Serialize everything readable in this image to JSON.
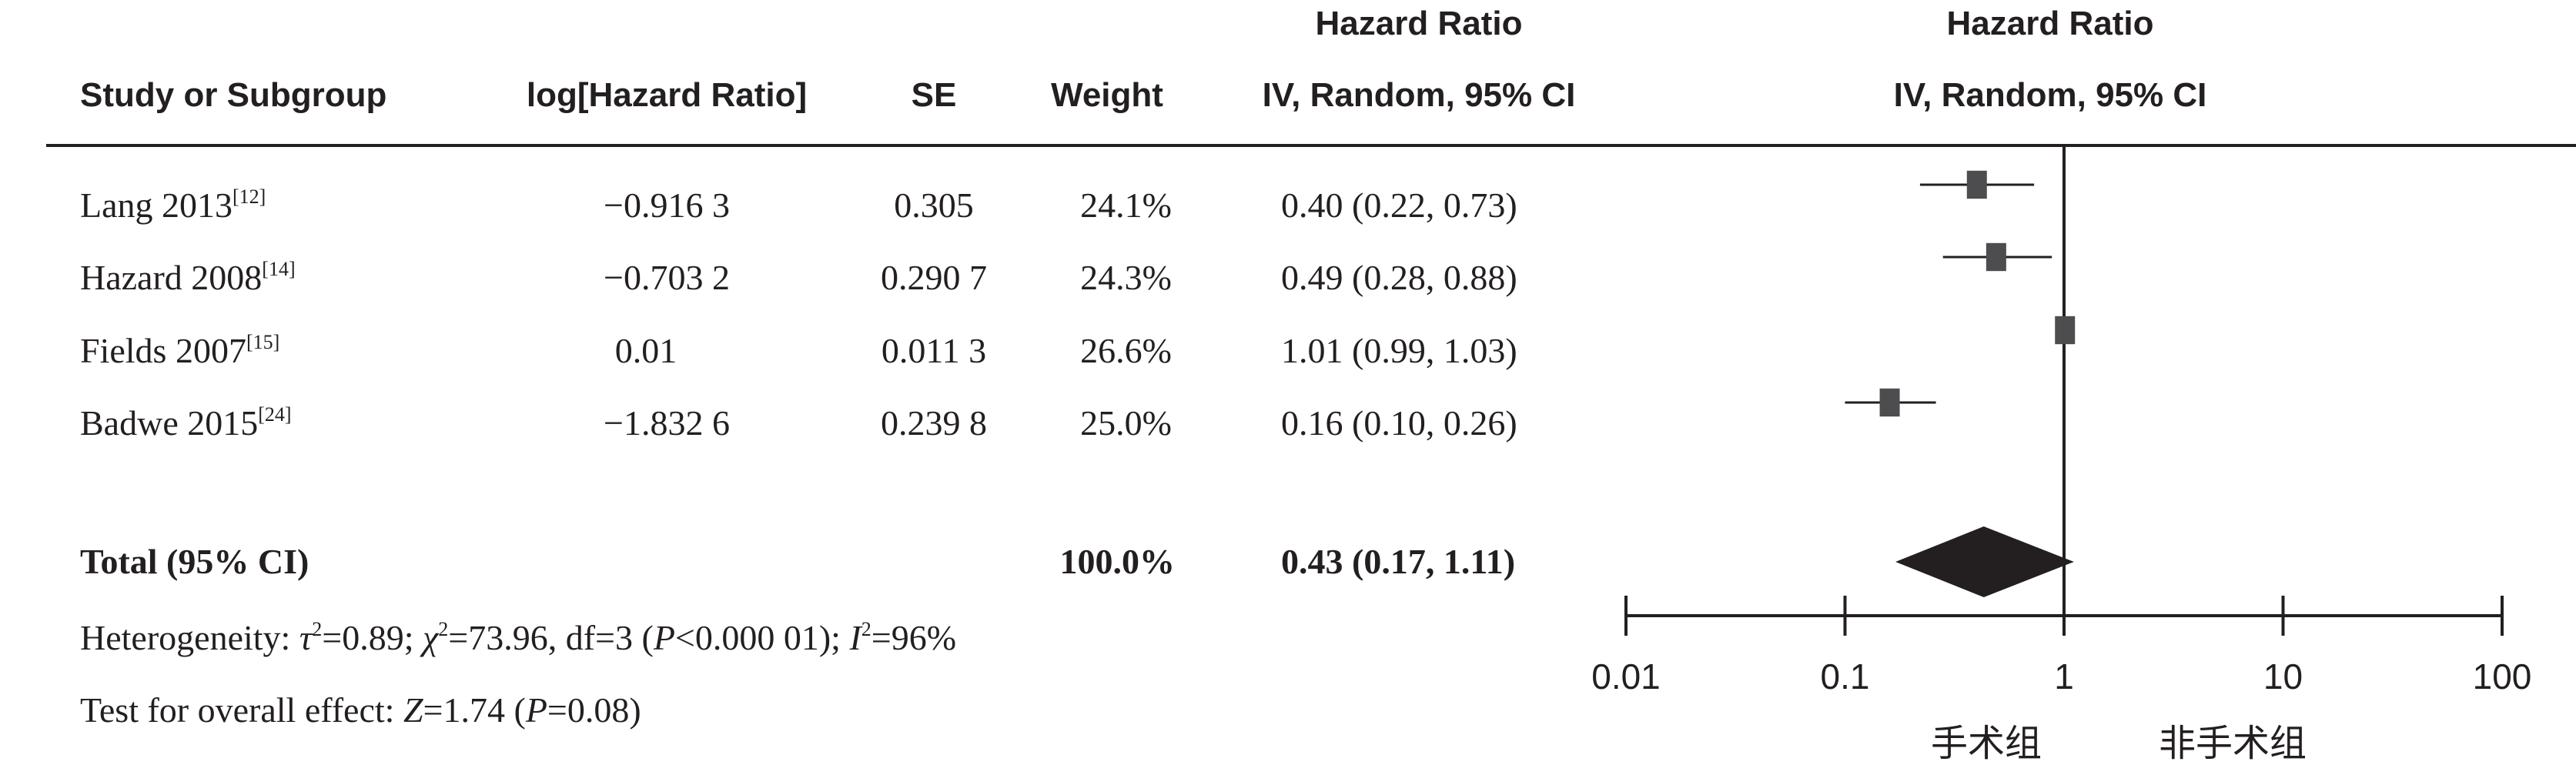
{
  "headers": {
    "study": "Study or Subgroup",
    "log_hr": "log[Hazard Ratio]",
    "se": "SE",
    "weight": "Weight",
    "hr_title": "Hazard Ratio",
    "hr_method": "IV, Random, 95% CI",
    "plot_title": "Hazard Ratio",
    "plot_method": "IV, Random, 95% CI"
  },
  "studies": [
    {
      "name": "Lang 2013",
      "ref": "[12]",
      "log_hr": "−0.916 3",
      "se": "0.305",
      "weight": "24.1%",
      "ci_text": "0.40 (0.22, 0.73)"
    },
    {
      "name": "Hazard 2008",
      "ref": "[14]",
      "log_hr": "−0.703 2",
      "se": "0.290 7",
      "weight": "24.3%",
      "ci_text": "0.49 (0.28, 0.88)"
    },
    {
      "name": "Fields 2007",
      "ref": "[15]",
      "log_hr": "0.01",
      "se": "0.011 3",
      "weight": "26.6%",
      "ci_text": "1.01 (0.99, 1.03)"
    },
    {
      "name": "Badwe 2015",
      "ref": "[24]",
      "log_hr": "−1.832 6",
      "se": "0.239 8",
      "weight": "25.0%",
      "ci_text": "0.16 (0.10, 0.26)"
    }
  ],
  "total": {
    "label": "Total (95% CI)",
    "weight": "100.0%",
    "ci_text": "0.43 (0.17, 1.11)"
  },
  "heterogeneity": {
    "prefix": "Heterogeneity: ",
    "tau_sym": "τ",
    "tau_val": "=0.89; ",
    "chi_sym": "χ",
    "chi_val": "=73.96, df=3 (",
    "p_sym": "P",
    "p_val": "<0.000 01); ",
    "i_sym": "I",
    "i_val": "=96%",
    "sq": "2"
  },
  "overall": {
    "prefix": "Test for overall effect: ",
    "z_sym": "Z",
    "z_val": "=1.74 (",
    "p_sym": "P",
    "p_val": "=0.08)"
  },
  "chart_data": {
    "type": "forest",
    "title": "Hazard Ratio",
    "subtitle": "IV, Random, 95% CI",
    "x_scale": "log",
    "xlim": [
      0.01,
      100
    ],
    "ticks": [
      0.01,
      0.1,
      1,
      10,
      100
    ],
    "tick_labels": [
      "0.01",
      "0.1",
      "1",
      "10",
      "100"
    ],
    "null_line": 1,
    "favors_left": "手术组",
    "favors_right": "非手术组",
    "marker_color": "#4d4d4f",
    "diamond_color": "#231f20",
    "studies": [
      {
        "name": "Lang 2013",
        "hr": 0.4,
        "lo": 0.22,
        "hi": 0.73,
        "weight": 24.1
      },
      {
        "name": "Hazard 2008",
        "hr": 0.49,
        "lo": 0.28,
        "hi": 0.88,
        "weight": 24.3
      },
      {
        "name": "Fields 2007",
        "hr": 1.01,
        "lo": 0.99,
        "hi": 1.03,
        "weight": 26.6
      },
      {
        "name": "Badwe 2015",
        "hr": 0.16,
        "lo": 0.1,
        "hi": 0.26,
        "weight": 25.0
      }
    ],
    "total": {
      "hr": 0.43,
      "lo": 0.17,
      "hi": 1.11
    }
  }
}
